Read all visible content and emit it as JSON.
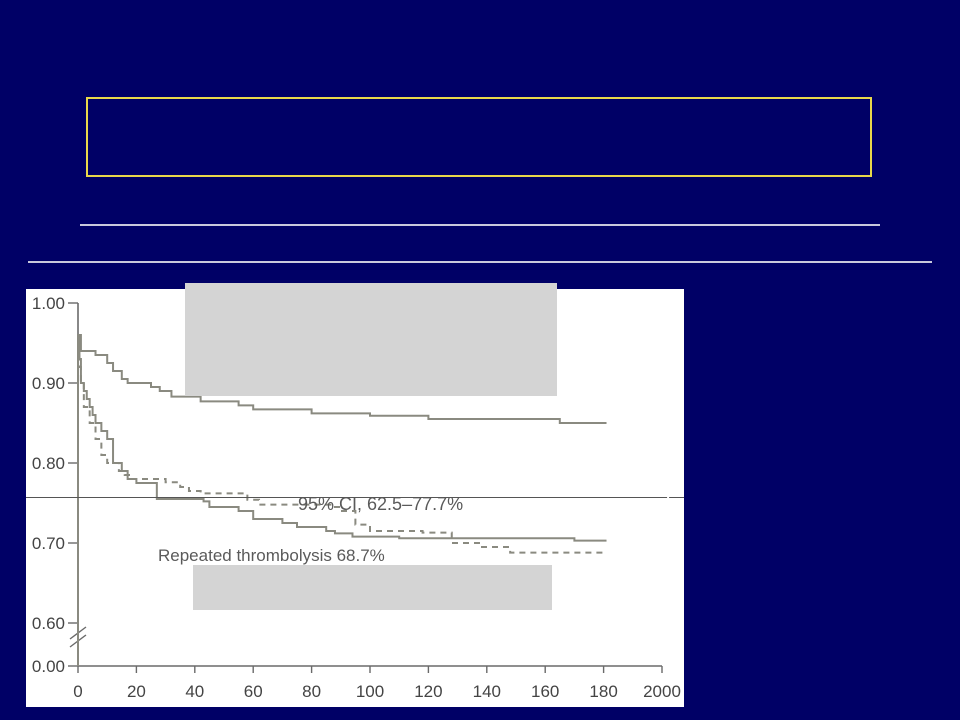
{
  "slide": {
    "background": "#000066",
    "frame_color": "#e8d84a",
    "rule_color": "#c8c8dc",
    "mask_color": "#d4d4d4",
    "brace_color": "#ffffff"
  },
  "chart_data": {
    "type": "line",
    "title": "",
    "xlabel": "",
    "ylabel": "",
    "xlim": [
      0,
      200
    ],
    "ylim": [
      0.6,
      1.0
    ],
    "y_axis_break": true,
    "x_ticks": [
      "0",
      "20",
      "40",
      "60",
      "80",
      "100",
      "120",
      "140",
      "160",
      "180",
      "2000"
    ],
    "y_ticks": [
      "1.00",
      "0.90",
      "0.80",
      "0.70",
      "0.60",
      "0.00"
    ],
    "annotations": {
      "ci": "95% CI, 62.5–77.7%",
      "series_label": "Repeated thrombolysis 68.7%"
    },
    "line_color": "#8a8a80",
    "series": [
      {
        "style": "solid",
        "points": [
          [
            0,
            0.96
          ],
          [
            1,
            0.94
          ],
          [
            6,
            0.935
          ],
          [
            10,
            0.925
          ],
          [
            12,
            0.915
          ],
          [
            15,
            0.905
          ],
          [
            17,
            0.9
          ],
          [
            25,
            0.895
          ],
          [
            28,
            0.89
          ],
          [
            32,
            0.883
          ],
          [
            42,
            0.877
          ],
          [
            55,
            0.872
          ],
          [
            60,
            0.867
          ],
          [
            80,
            0.862
          ],
          [
            100,
            0.859
          ],
          [
            120,
            0.855
          ],
          [
            165,
            0.85
          ],
          [
            181,
            0.85
          ]
        ]
      },
      {
        "style": "solid",
        "points": [
          [
            0,
            0.96
          ],
          [
            0.5,
            0.93
          ],
          [
            1,
            0.9
          ],
          [
            2,
            0.89
          ],
          [
            3,
            0.88
          ],
          [
            4,
            0.87
          ],
          [
            5,
            0.86
          ],
          [
            6,
            0.85
          ],
          [
            8,
            0.84
          ],
          [
            10,
            0.83
          ],
          [
            12,
            0.8
          ],
          [
            15,
            0.79
          ],
          [
            17,
            0.78
          ],
          [
            20,
            0.775
          ],
          [
            27,
            0.755
          ],
          [
            43,
            0.752
          ],
          [
            45,
            0.745
          ],
          [
            55,
            0.74
          ],
          [
            60,
            0.73
          ],
          [
            70,
            0.725
          ],
          [
            75,
            0.72
          ],
          [
            85,
            0.715
          ],
          [
            88,
            0.712
          ],
          [
            94,
            0.708
          ],
          [
            110,
            0.706
          ],
          [
            170,
            0.703
          ],
          [
            181,
            0.703
          ]
        ]
      },
      {
        "style": "dashed",
        "points": [
          [
            0,
            0.96
          ],
          [
            0.5,
            0.92
          ],
          [
            1,
            0.9
          ],
          [
            2,
            0.87
          ],
          [
            4,
            0.85
          ],
          [
            6,
            0.83
          ],
          [
            8,
            0.81
          ],
          [
            10,
            0.8
          ],
          [
            14,
            0.79
          ],
          [
            16,
            0.785
          ],
          [
            18,
            0.78
          ],
          [
            30,
            0.776
          ],
          [
            35,
            0.77
          ],
          [
            38,
            0.765
          ],
          [
            42,
            0.762
          ],
          [
            58,
            0.754
          ],
          [
            62,
            0.748
          ],
          [
            88,
            0.745
          ],
          [
            90,
            0.74
          ],
          [
            95,
            0.723
          ],
          [
            100,
            0.715
          ],
          [
            118,
            0.713
          ],
          [
            128,
            0.7
          ],
          [
            138,
            0.695
          ],
          [
            148,
            0.688
          ],
          [
            181,
            0.688
          ]
        ]
      }
    ]
  }
}
